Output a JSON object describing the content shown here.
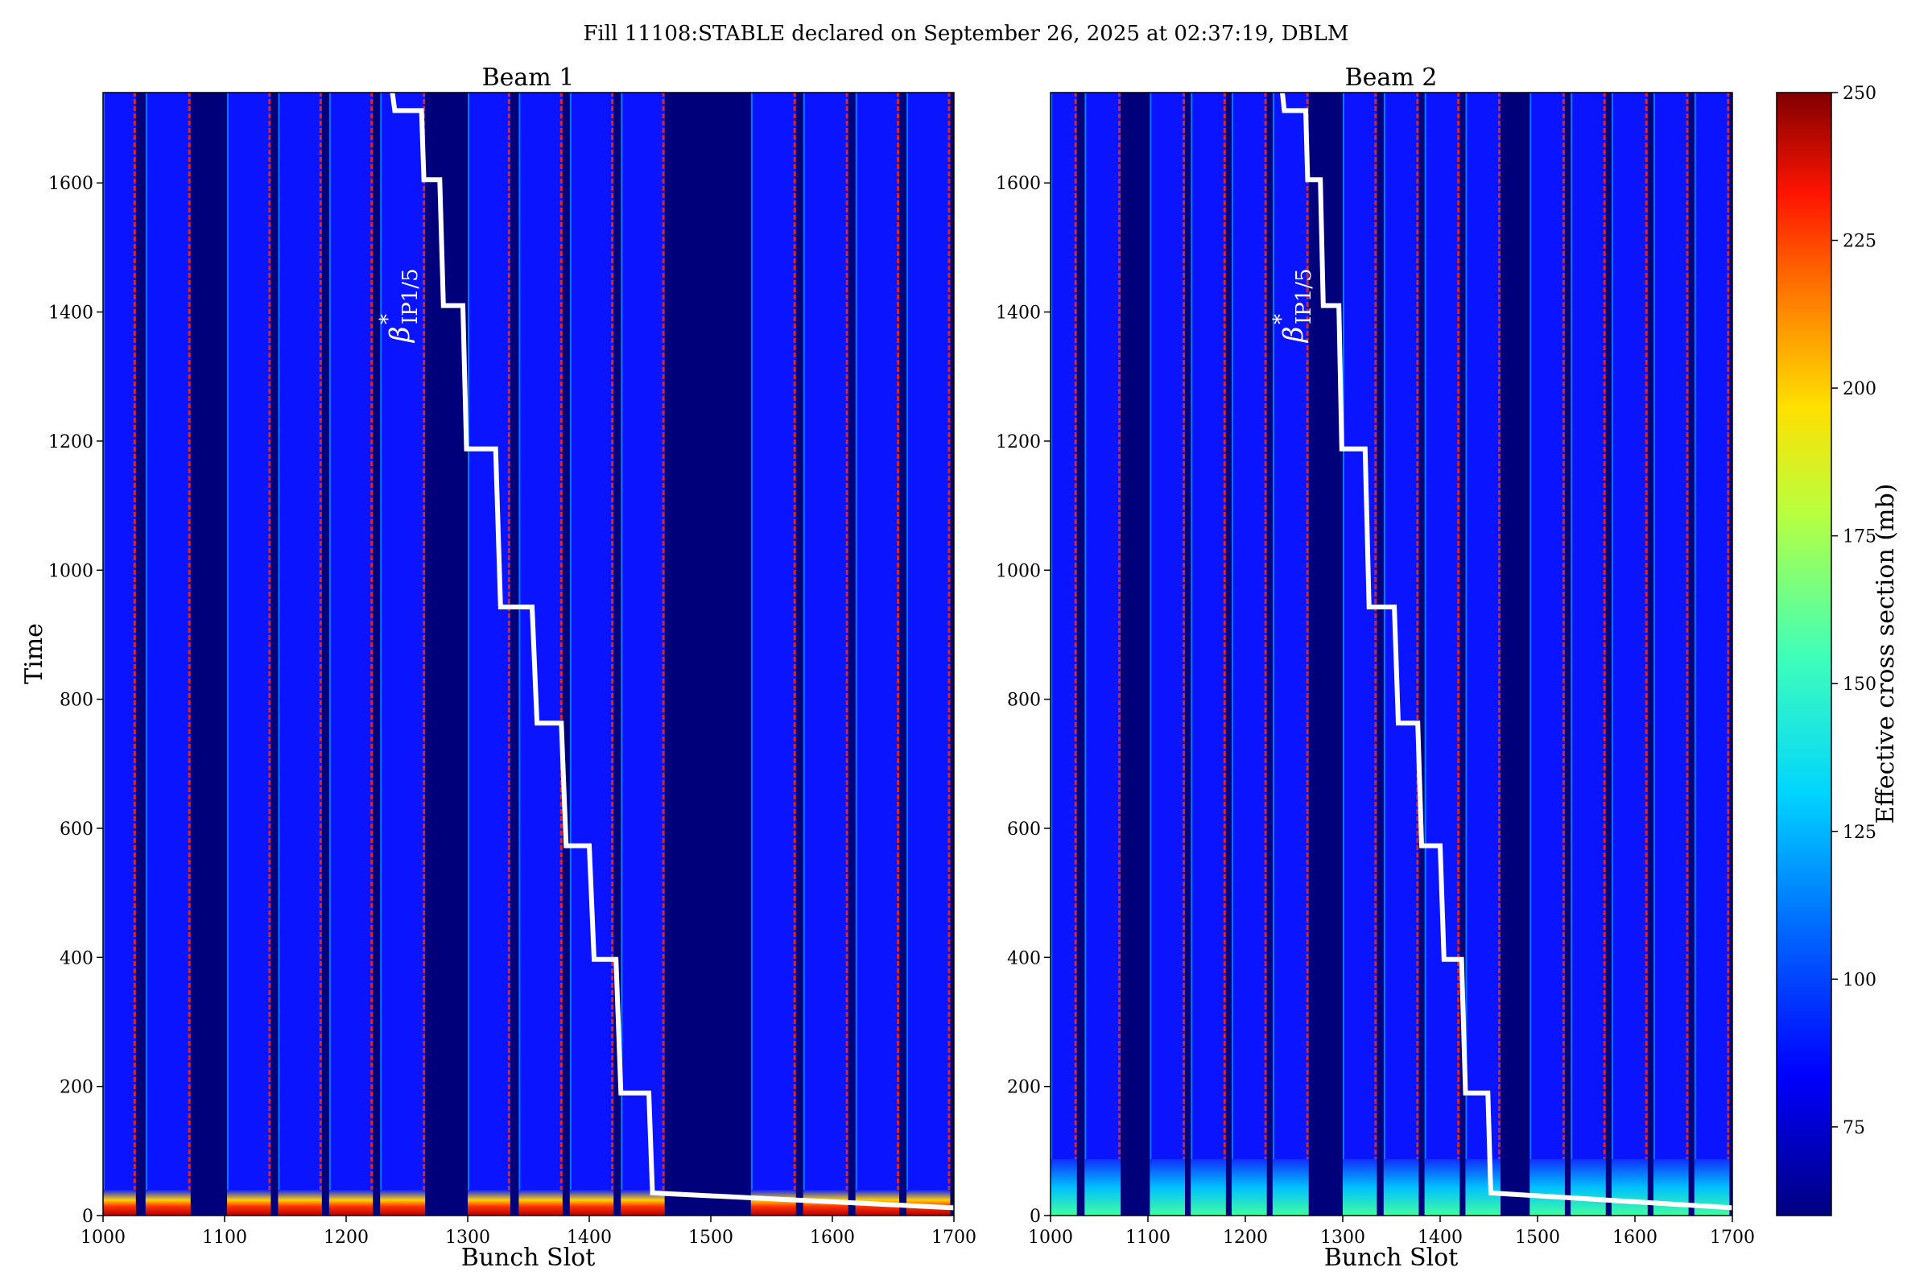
{
  "suptitle": "Fill 11108:STABLE declared on September 26, 2025 at 02:37:19, DBLM",
  "colors": {
    "background_blue": "#0a14ff",
    "gap_navy": "#00007a",
    "hot_red": "#ff2000",
    "line_white": "#ffffff",
    "colormap": [
      "#000080",
      "#0000ff",
      "#0080ff",
      "#00ffff",
      "#80ff80",
      "#ffff00",
      "#ff8000",
      "#ff0000",
      "#800000"
    ]
  },
  "annotation": {
    "text": "β",
    "sup": "*",
    "sub": "IP1/5"
  },
  "chart_data": [
    {
      "type": "heatmap",
      "title": "Beam 1",
      "xlabel": "Bunch Slot",
      "ylabel": "Time",
      "xlim": [
        1000,
        1700
      ],
      "ylim": [
        0,
        1740
      ],
      "xticks": [
        1000,
        1100,
        1200,
        1300,
        1400,
        1500,
        1600,
        1700
      ],
      "yticks": [
        0,
        200,
        400,
        600,
        800,
        1000,
        1200,
        1400,
        1600
      ],
      "filled_trains": [
        [
          1000,
          1027
        ],
        [
          1035,
          1072
        ],
        [
          1102,
          1138
        ],
        [
          1144,
          1180
        ],
        [
          1186,
          1222
        ],
        [
          1228,
          1265
        ],
        [
          1300,
          1335
        ],
        [
          1342,
          1378
        ],
        [
          1384,
          1420
        ],
        [
          1426,
          1462
        ],
        [
          1533,
          1570
        ],
        [
          1576,
          1613
        ],
        [
          1619,
          1655
        ],
        [
          1661,
          1697
        ]
      ],
      "beta_star_line": [
        [
          1238,
          1740
        ],
        [
          1240,
          1712
        ],
        [
          1262,
          1712
        ],
        [
          1264,
          1605
        ],
        [
          1277,
          1605
        ],
        [
          1280,
          1410
        ],
        [
          1296,
          1410
        ],
        [
          1299,
          1188
        ],
        [
          1323,
          1188
        ],
        [
          1327,
          943
        ],
        [
          1353,
          943
        ],
        [
          1357,
          763
        ],
        [
          1377,
          763
        ],
        [
          1381,
          573
        ],
        [
          1400,
          573
        ],
        [
          1404,
          397
        ],
        [
          1422,
          397
        ],
        [
          1426,
          190
        ],
        [
          1449,
          190
        ],
        [
          1452,
          35
        ],
        [
          1700,
          12
        ]
      ]
    },
    {
      "type": "heatmap",
      "title": "Beam 2",
      "xlabel": "Bunch Slot",
      "ylabel": "",
      "xlim": [
        1000,
        1700
      ],
      "ylim": [
        0,
        1740
      ],
      "xticks": [
        1000,
        1100,
        1200,
        1300,
        1400,
        1500,
        1600,
        1700
      ],
      "yticks": [
        0,
        200,
        400,
        600,
        800,
        1000,
        1200,
        1400,
        1600
      ],
      "filled_trains": [
        [
          1000,
          1027
        ],
        [
          1035,
          1072
        ],
        [
          1102,
          1138
        ],
        [
          1144,
          1180
        ],
        [
          1186,
          1222
        ],
        [
          1228,
          1265
        ],
        [
          1300,
          1335
        ],
        [
          1342,
          1378
        ],
        [
          1384,
          1420
        ],
        [
          1426,
          1462
        ],
        [
          1492,
          1528
        ],
        [
          1534,
          1570
        ],
        [
          1576,
          1613
        ],
        [
          1619,
          1655
        ],
        [
          1661,
          1697
        ]
      ],
      "beta_star_line": [
        [
          1238,
          1740
        ],
        [
          1240,
          1712
        ],
        [
          1262,
          1712
        ],
        [
          1264,
          1605
        ],
        [
          1277,
          1605
        ],
        [
          1280,
          1410
        ],
        [
          1296,
          1410
        ],
        [
          1299,
          1188
        ],
        [
          1323,
          1188
        ],
        [
          1327,
          943
        ],
        [
          1353,
          943
        ],
        [
          1357,
          763
        ],
        [
          1377,
          763
        ],
        [
          1381,
          573
        ],
        [
          1400,
          573
        ],
        [
          1404,
          397
        ],
        [
          1422,
          397
        ],
        [
          1426,
          190
        ],
        [
          1449,
          190
        ],
        [
          1452,
          35
        ],
        [
          1700,
          12
        ]
      ]
    },
    {
      "type": "colorbar",
      "label": "Effective cross section (mb)",
      "range": [
        60,
        250
      ],
      "ticks": [
        75,
        100,
        125,
        150,
        175,
        200,
        225,
        250
      ]
    }
  ]
}
